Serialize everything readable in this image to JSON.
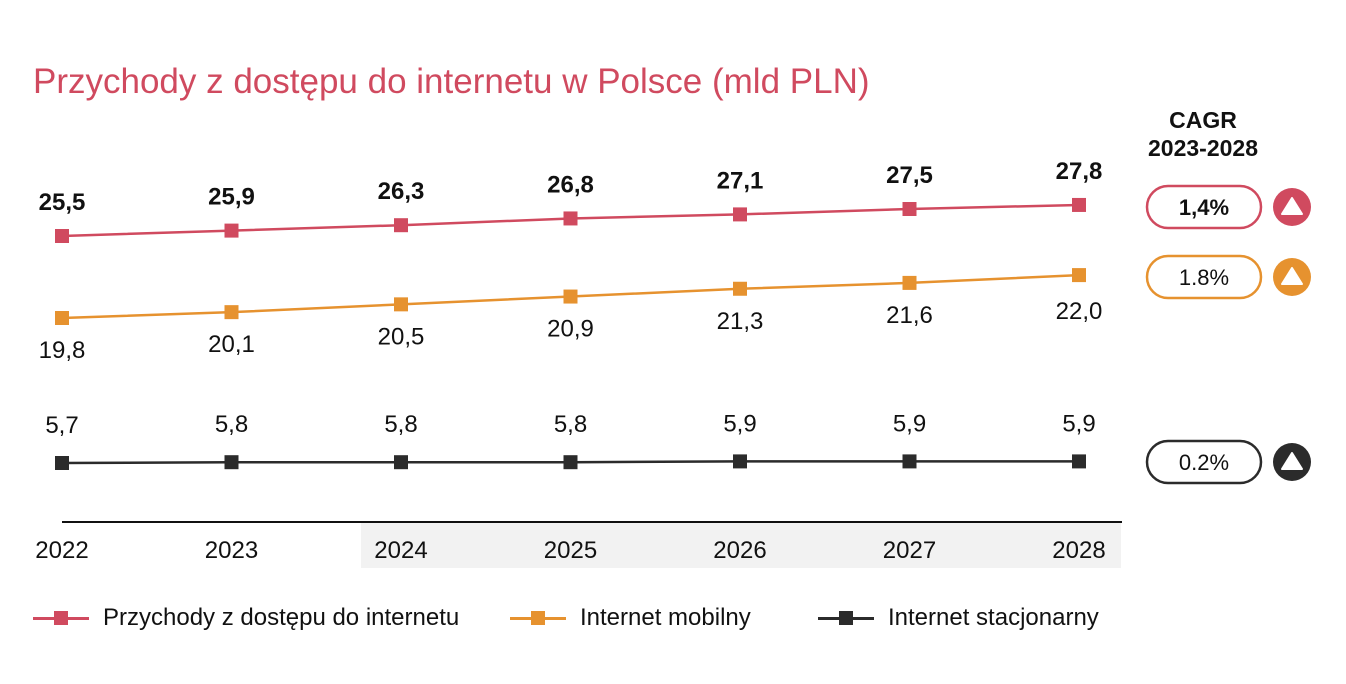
{
  "title": "Przychody z dostępu do internetu w Polsce (mld PLN)",
  "cagr": {
    "header_line1": "CAGR",
    "header_line2": "2023-2028"
  },
  "chart_data": {
    "type": "line",
    "title": "Przychody z dostępu do internetu w Polsce (mld PLN)",
    "xlabel": "",
    "ylabel": "",
    "categories": [
      "2022",
      "2023",
      "2024",
      "2025",
      "2026",
      "2027",
      "2028"
    ],
    "highlighted_categories": [
      "2024",
      "2025",
      "2026",
      "2027",
      "2028"
    ],
    "grid": false,
    "legend_position": "bottom",
    "series": [
      {
        "name": "Przychody z dostępu do internetu",
        "color": "#d04a5f",
        "values": [
          25.5,
          25.9,
          26.3,
          26.8,
          27.1,
          27.5,
          27.8
        ],
        "labels": [
          "25,5",
          "25,9",
          "26,3",
          "26,8",
          "27,1",
          "27,5",
          "27,8"
        ],
        "label_bold": true,
        "cagr": "1,4%",
        "cagr_bold": true,
        "cagr_icon": "triangle-up-icon"
      },
      {
        "name": "Internet mobilny",
        "color": "#e6922f",
        "values": [
          19.8,
          20.1,
          20.5,
          20.9,
          21.3,
          21.6,
          22.0
        ],
        "labels": [
          "19,8",
          "20,1",
          "20,5",
          "20,9",
          "21,3",
          "21,6",
          "22,0"
        ],
        "label_bold": false,
        "cagr": "1.8%",
        "cagr_bold": false,
        "cagr_icon": "triangle-up-icon"
      },
      {
        "name": "Internet stacjonarny",
        "color": "#2b2b2b",
        "values": [
          5.7,
          5.8,
          5.8,
          5.8,
          5.9,
          5.9,
          5.9
        ],
        "labels": [
          "5,7",
          "5,8",
          "5,8",
          "5,8",
          "5,9",
          "5,9",
          "5,9"
        ],
        "label_bold": false,
        "cagr": "0.2%",
        "cagr_bold": false,
        "cagr_icon": "triangle-up-icon"
      }
    ]
  }
}
